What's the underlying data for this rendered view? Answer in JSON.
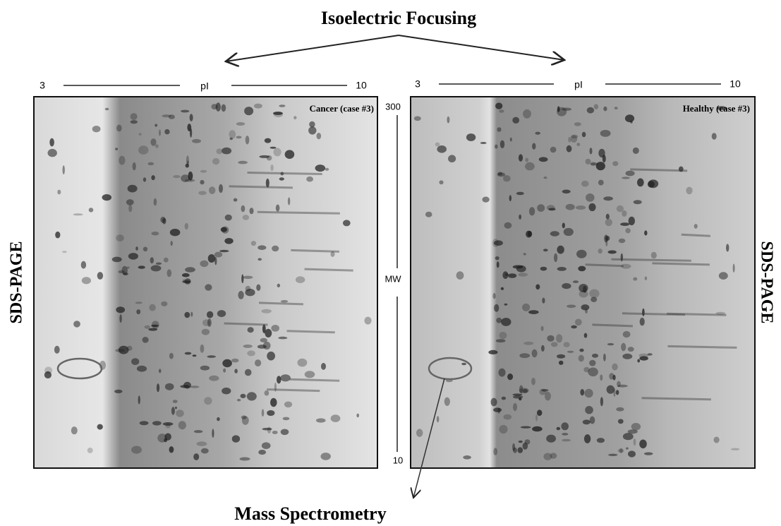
{
  "header": {
    "title": "Isoelectric Focusing"
  },
  "left_gel": {
    "label": "Cancer (case #3)",
    "ph_start": 3,
    "ph_axis": "pI",
    "ph_end": 10,
    "side_label": "SDS-PAGE"
  },
  "right_gel": {
    "label": "Healthy (case #3)",
    "ph_start": 3,
    "ph_axis": "pI",
    "ph_end": 10,
    "side_label": "SDS-PAGE"
  },
  "mw_axis": {
    "top": 300,
    "label": "MW",
    "bottom": 10
  },
  "footer": {
    "label": "Mass Spectrometry"
  }
}
